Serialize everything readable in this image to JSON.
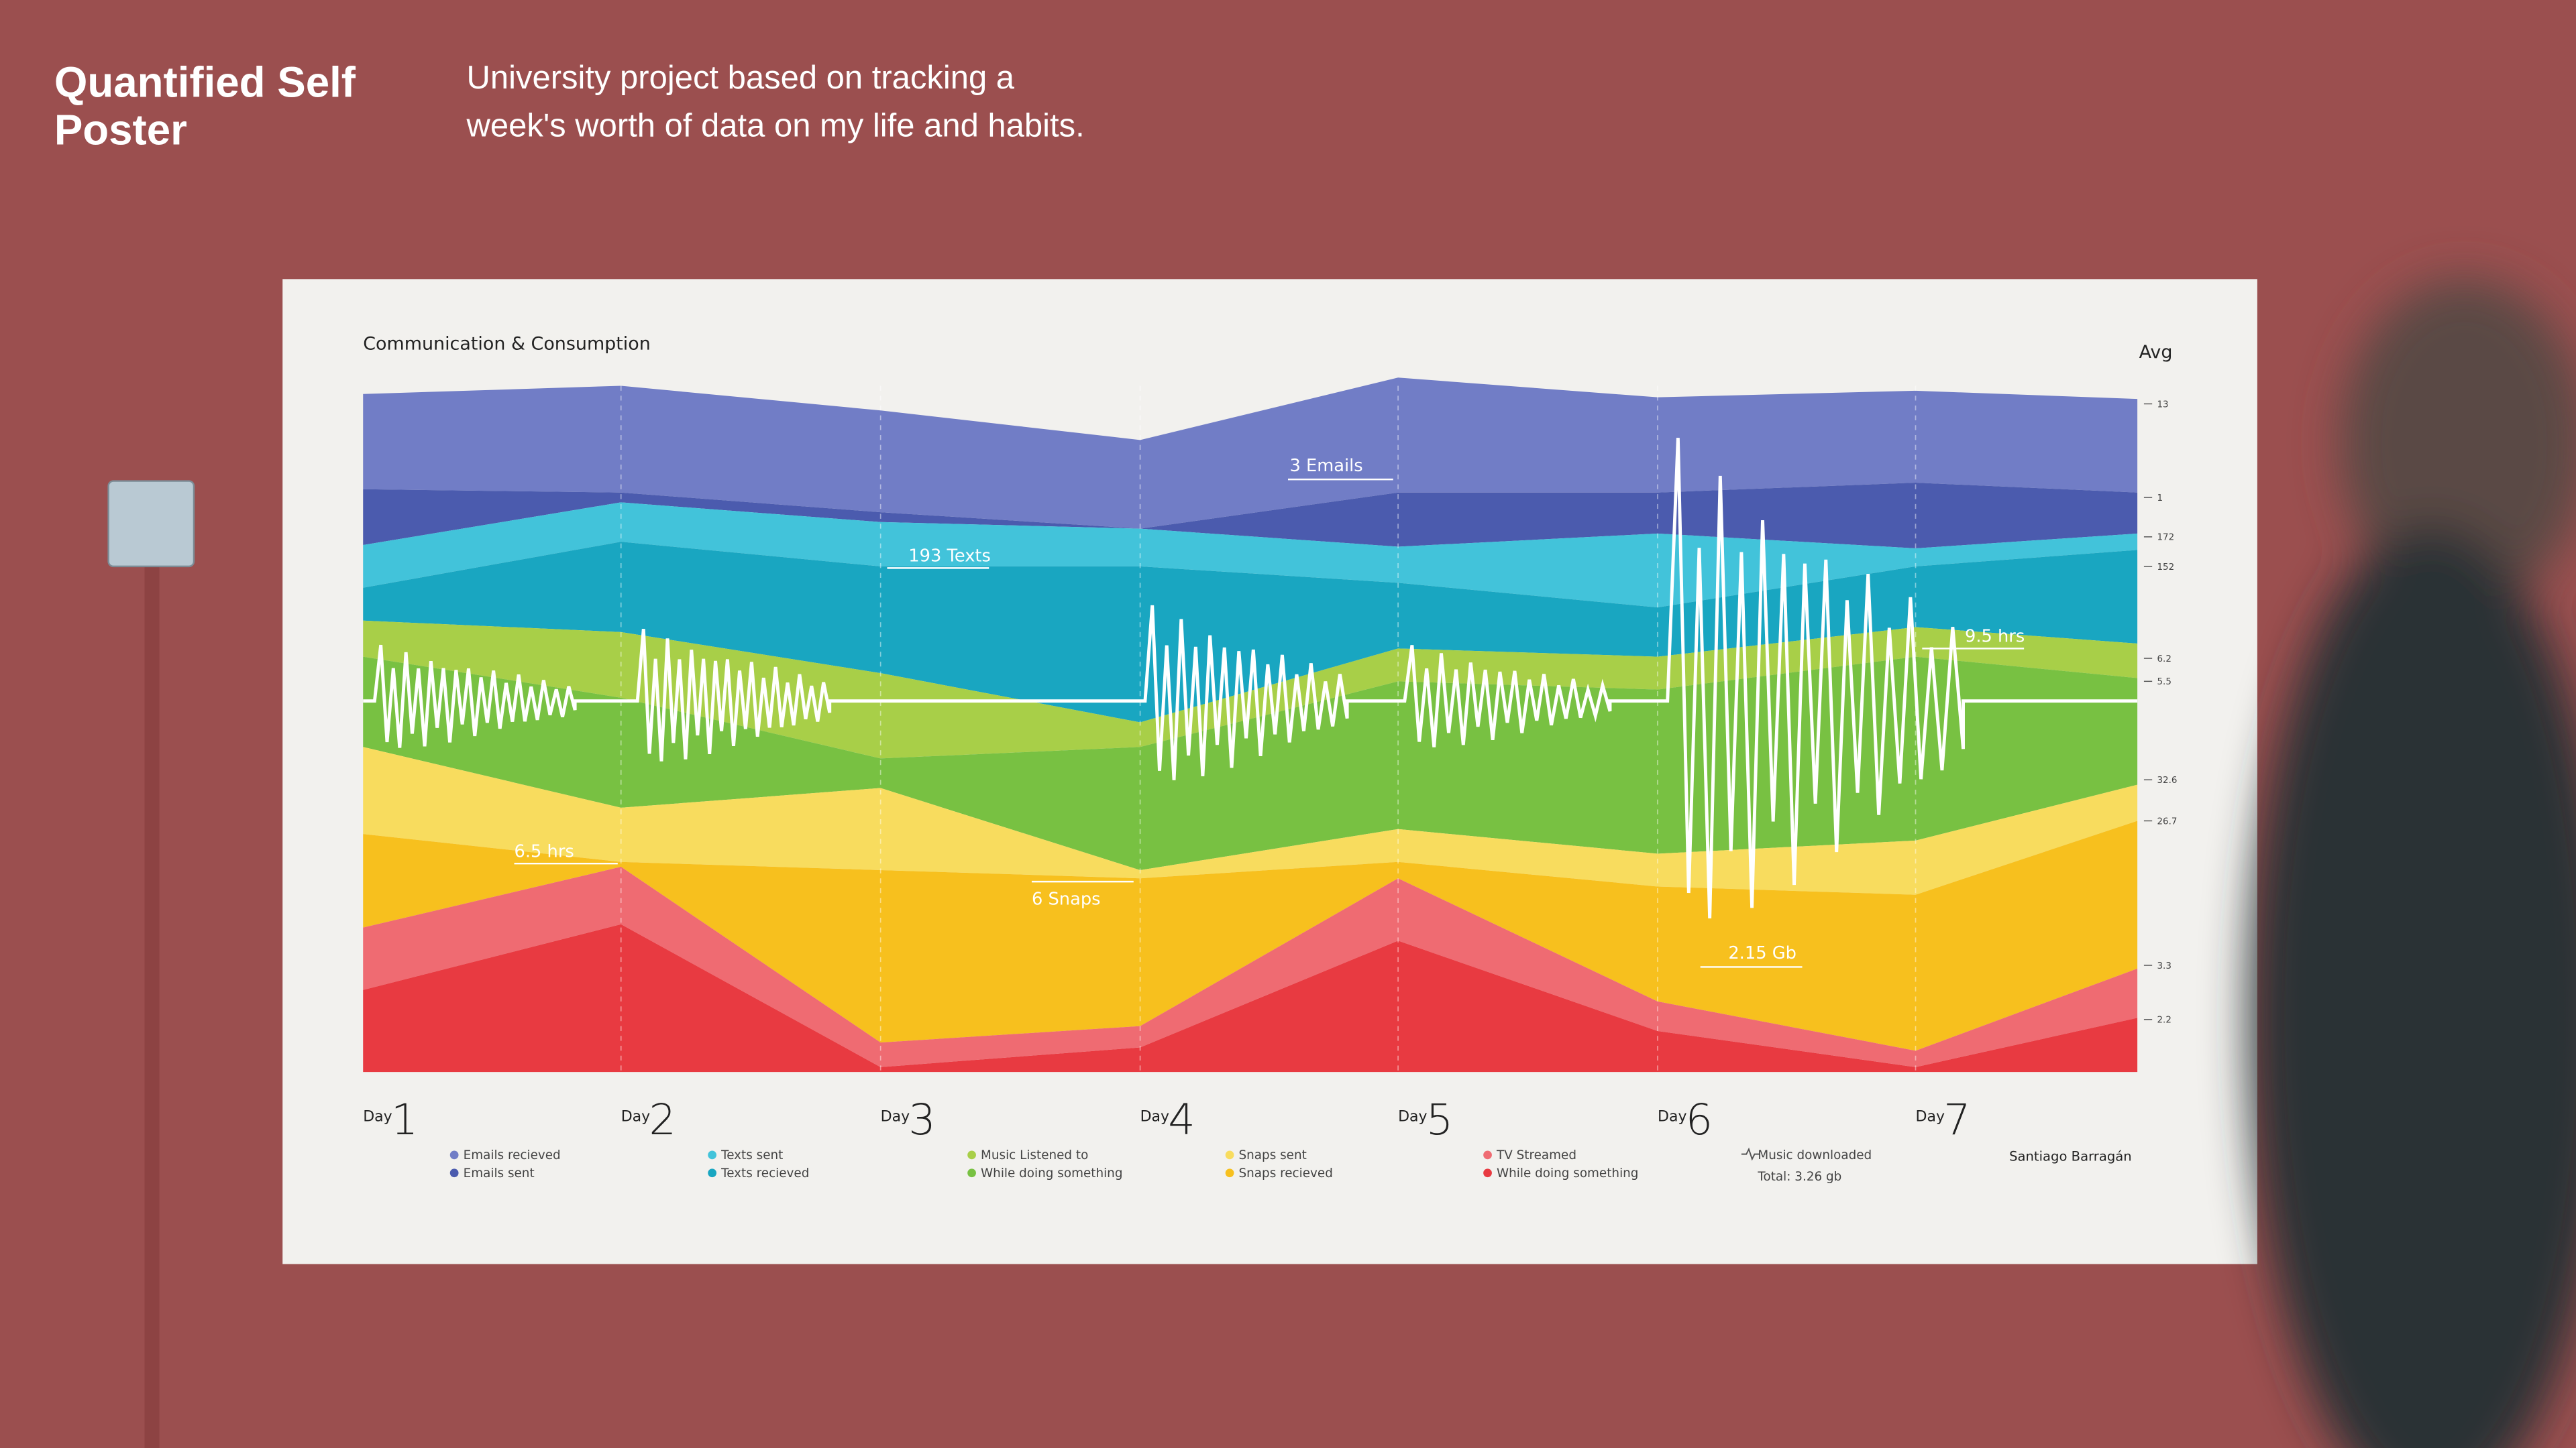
{
  "header": {
    "title_line1": "Quantified Self",
    "title_line2": "Poster",
    "description_line1": "University project based on tracking a",
    "description_line2": "week's worth of data on my life and habits."
  },
  "poster": {
    "title": "Communication & Consumption",
    "avg_label": "Avg",
    "author": "Santiago Barragán"
  },
  "chart_data": {
    "type": "area",
    "title": "Communication & Consumption",
    "categories": [
      "Day 1",
      "Day 2",
      "Day 3",
      "Day 4",
      "Day 5",
      "Day 6",
      "Day 7"
    ],
    "day_prefix": "Day",
    "day_numbers": [
      "1",
      "2",
      "3",
      "4",
      "5",
      "6",
      "7"
    ],
    "stacked": true,
    "grid": false,
    "right_axis_label": "Avg",
    "series": [
      {
        "name": "Emails recieved",
        "color": "#717dc6",
        "avg": "13"
      },
      {
        "name": "Emails sent",
        "color": "#4b5bae",
        "avg": "1"
      },
      {
        "name": "Texts sent",
        "color": "#42c3da",
        "avg": "172"
      },
      {
        "name": "Texts recieved",
        "color": "#19a6c1",
        "avg": "152"
      },
      {
        "name": "Music Listened to",
        "color": "#a8cf48",
        "avg": "6.2"
      },
      {
        "name": "While doing something",
        "color": "#78c142",
        "avg": "5.5"
      },
      {
        "name": "Snaps sent",
        "color": "#f8dc5e",
        "avg": "32.6"
      },
      {
        "name": "Snaps recieved",
        "color": "#f7c01e",
        "avg": "26.7"
      },
      {
        "name": "TV Streamed",
        "color": "#ef6b72",
        "avg": "3.3"
      },
      {
        "name": "While doing something",
        "color": "#e83a41",
        "avg": "2.2"
      }
    ],
    "line_series": {
      "name": "Music downloaded",
      "total": "Total: 3.26 gb",
      "color": "#ffffff"
    },
    "annotations": [
      "3 Emails",
      "193 Texts",
      "9.5 hrs",
      "6.5 hrs",
      "6 Snaps",
      "2.15 Gb"
    ]
  }
}
